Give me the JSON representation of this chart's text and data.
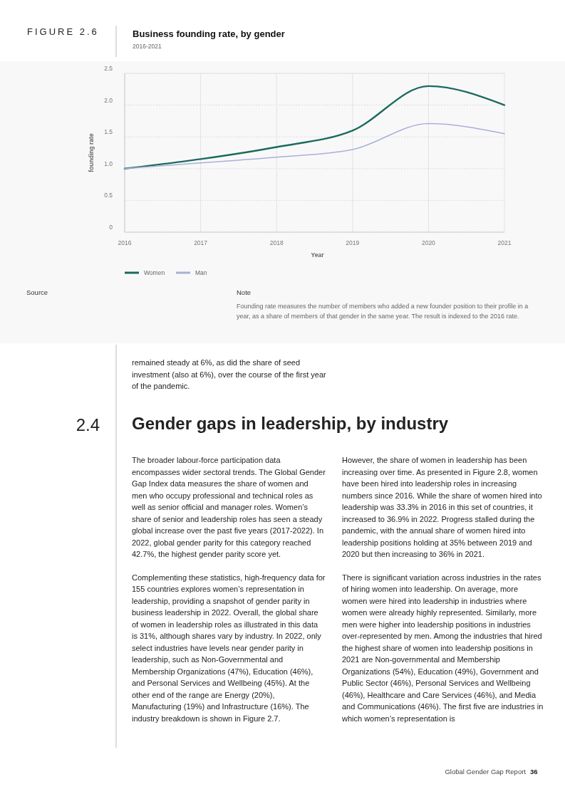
{
  "chart_data": {
    "type": "line",
    "title": "Business founding rate, by gender",
    "subtitle": "2016-2021",
    "xlabel": "Year",
    "ylabel": "founding rate",
    "x": [
      2016,
      2017,
      2018,
      2019,
      2020,
      2021
    ],
    "series": [
      {
        "name": "Women",
        "color": "#1b6b5d",
        "values": [
          1.0,
          1.15,
          1.34,
          1.6,
          2.3,
          2.0
        ]
      },
      {
        "name": "Man",
        "color": "#a9b0d8",
        "values": [
          1.0,
          1.09,
          1.18,
          1.3,
          1.71,
          1.55
        ]
      }
    ],
    "xlim": [
      2016,
      2021
    ],
    "xticks": [
      2016,
      2017,
      2018,
      2019,
      2020,
      2021
    ],
    "ylim": [
      0,
      2.5
    ],
    "yticks": [
      {
        "value": 0,
        "label": "0"
      },
      0.5,
      {
        "value": 1,
        "label": "1.0"
      },
      1.5,
      {
        "value": 2,
        "label": "2.0"
      },
      2.5
    ],
    "grid": true,
    "legend": "bottom",
    "marker": "none",
    "line_style": "solid",
    "annotations": [
      "FIGURE 2.6",
      "Source",
      "Note",
      "Founding rate measures the number of members who added a new founder position to their profile in a year, as a share of members of that gender in the same year. The result is indexed to the 2016 rate.",
      "remained steady at 6%, as did the share of seed investment (also at 6%), over the course of the first year of the pandemic.",
      "2.4",
      "Gender gaps in leadership, by industry",
      "The broader labour-force participation data encompasses wider sectoral trends. The Global Gender Gap Index data measures the share of women and men who occupy professional and technical roles as well as senior official and manager roles. Women’s share of senior and leadership roles has seen a steady global increase over the past five years (2017-2022). In 2022, global gender parity for this category reached 42.7%, the highest gender parity score yet.",
      "Complementing these statistics, high-frequency data for 155 countries explores women’s representation in leadership, providing a snapshot of gender parity in business leadership in 2022. Overall, the global share of women in leadership roles as illustrated in this data is 31%, although shares vary by industry. In 2022, only select industries have levels near gender parity in leadership, such as Non-Governmental and Membership Organizations (47%), Education (46%), and Personal Services and Wellbeing (45%). At the other end of the range are Energy (20%), Manufacturing (19%) and Infrastructure (16%). The industry breakdown is shown in Figure 2.7.",
      "However, the share of women in leadership has been increasing over time. As presented in Figure 2.8, women have been hired into leadership roles in increasing numbers since 2016. While the share of women hired into leadership was 33.3% in 2016 in this set of countries, it increased to 36.9% in 2022. Progress stalled during the pandemic, with the annual share of women hired into leadership positions holding at 35% between 2019 and 2020 but then increasing to 36% in 2021.",
      "There is significant variation across industries in the rates of hiring women into leadership. On average, more women were hired into leadership in industries where women were already highly represented. Similarly, more men were higher into leadership positions in industries over-represented by men. Among the industries that hired the highest share of women into leadership positions in 2021 are Non-governmental and Membership Organizations (54%), Education (49%), Government and Public Sector (46%), Personal Services and Wellbeing (46%), Healthcare and Care Services (46%), and Media and Communications (46%). The first five are industries in which women’s representation is",
      "Global Gender Gap Report",
      "36"
    ]
  }
}
